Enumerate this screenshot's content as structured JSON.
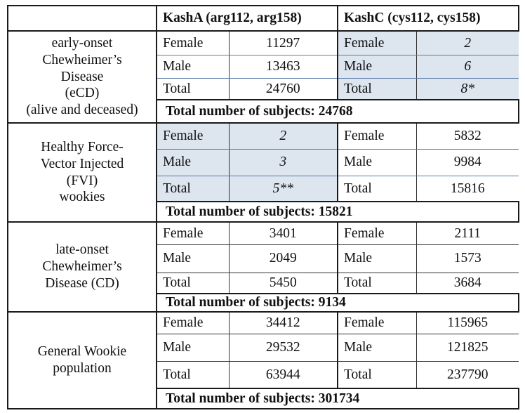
{
  "header": {
    "col_a": "KashA (arg112, arg158)",
    "col_c": "KashC (cys112, cys158)"
  },
  "labels": {
    "female": "Female",
    "male": "Male",
    "total": "Total"
  },
  "groups": [
    {
      "name_lines": [
        "early-onset",
        "Chewheimer’s",
        "Disease",
        "(eCD)",
        "(alive and deceased)"
      ],
      "kasha": {
        "female": "11297",
        "male": "13463",
        "total": "24760"
      },
      "kashc": {
        "female": "2",
        "male": "6",
        "total": "8*"
      },
      "total_subjects": "Total number of subjects: 24768"
    },
    {
      "name_lines": [
        "Healthy Force-",
        "Vector Injected",
        "(FVI)",
        "wookies"
      ],
      "kasha": {
        "female": "2",
        "male": "3",
        "total": "5**"
      },
      "kashc": {
        "female": "5832",
        "male": "9984",
        "total": "15816"
      },
      "total_subjects": "Total number of subjects: 15821"
    },
    {
      "name_lines": [
        "late-onset",
        "Chewheimer’s",
        "Disease (CD)"
      ],
      "kasha": {
        "female": "3401",
        "male": "2049",
        "total": "5450"
      },
      "kashc": {
        "female": "2111",
        "male": "1573",
        "total": "3684"
      },
      "total_subjects": "Total number of subjects: 9134"
    },
    {
      "name_lines": [
        "General Wookie",
        "population"
      ],
      "kasha": {
        "female": "34412",
        "male": "29532",
        "total": "63944"
      },
      "kashc": {
        "female": "115965",
        "male": "121825",
        "total": "237790"
      },
      "total_subjects": "Total number of subjects: 301734"
    }
  ],
  "colors": {
    "highlight": "#dde5ef",
    "inner_line": "#5b7aa8",
    "border": "#1a1a1a"
  }
}
